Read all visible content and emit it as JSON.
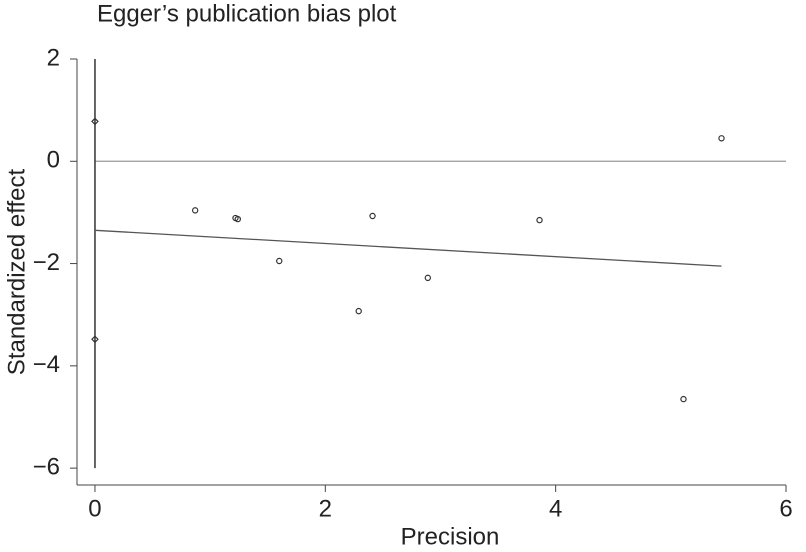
{
  "chart_data": {
    "type": "scatter",
    "title": "Egger’s publication bias plot",
    "x_label": "Precision",
    "y_label": "Standardized effect",
    "x": [
      0.87,
      1.22,
      1.24,
      1.6,
      2.29,
      2.41,
      2.89,
      3.86,
      5.11,
      5.44
    ],
    "values": [
      -0.96,
      -1.11,
      -1.13,
      -1.95,
      -2.93,
      -1.07,
      -2.28,
      -1.15,
      -4.65,
      0.45
    ],
    "fit": {
      "x": [
        0,
        5.44
      ],
      "values": [
        -1.35,
        -2.05
      ]
    },
    "intercept_ci": {
      "x": [
        0,
        0
      ],
      "values": [
        2,
        -6
      ]
    },
    "intercept_points": {
      "x": [
        0,
        0
      ],
      "values": [
        0.78,
        -3.48
      ]
    },
    "hline": 0,
    "color": "#444444",
    "xlim": [
      -0.156,
      6
    ],
    "ylim": [
      -6.33,
      2
    ],
    "xticks": [
      0,
      2,
      4,
      6
    ],
    "yticks": [
      {
        "value": -6,
        "label": "−6"
      },
      {
        "value": -4,
        "label": "−4"
      },
      {
        "value": -2,
        "label": "−2"
      },
      0,
      2
    ],
    "grid": false
  }
}
